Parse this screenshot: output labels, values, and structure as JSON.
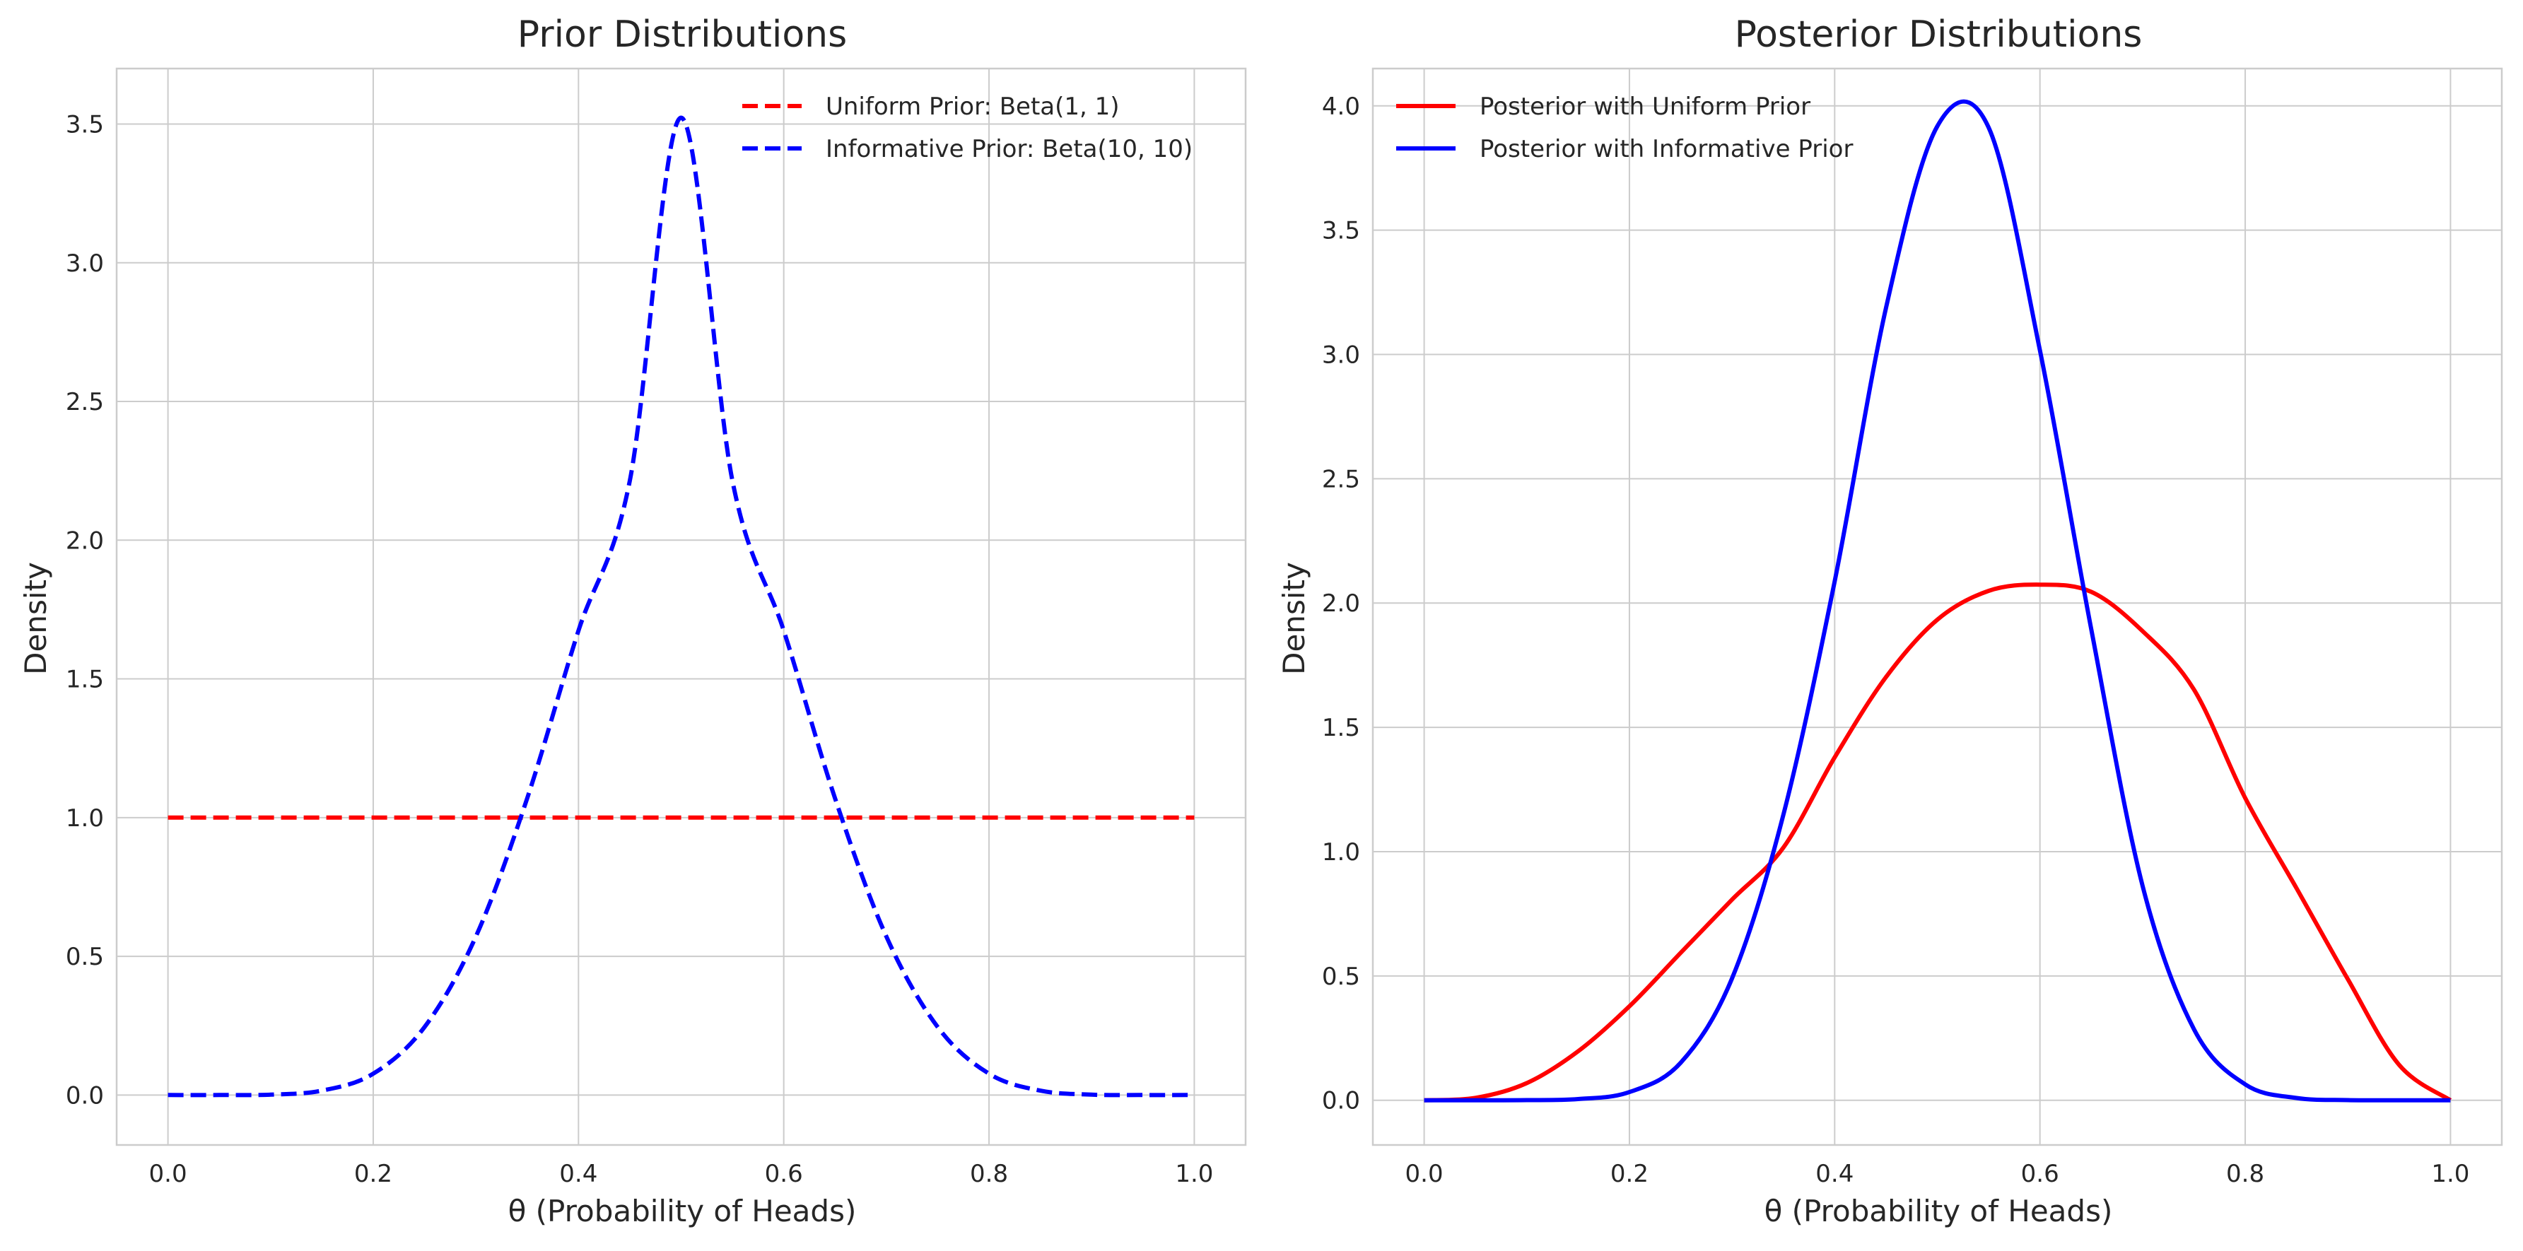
{
  "chart_data": [
    {
      "type": "line",
      "title": "Prior Distributions",
      "xlabel": "θ (Probability of Heads)",
      "ylabel": "Density",
      "xlim": [
        -0.05,
        1.05
      ],
      "ylim": [
        -0.18,
        3.7
      ],
      "xticks": [
        "0.0",
        "0.2",
        "0.4",
        "0.6",
        "0.8",
        "1.0"
      ],
      "yticks": [
        "0.0",
        "0.5",
        "1.0",
        "1.5",
        "2.0",
        "2.5",
        "3.0",
        "3.5"
      ],
      "grid": true,
      "legend_position": "top-right",
      "series": [
        {
          "name": "Uniform Prior: Beta(1, 1)",
          "color": "#ff0000",
          "style": "dashed",
          "x": [
            0.0,
            0.05,
            0.1,
            0.15,
            0.2,
            0.25,
            0.3,
            0.35,
            0.4,
            0.45,
            0.5,
            0.55,
            0.6,
            0.65,
            0.7,
            0.75,
            0.8,
            0.85,
            0.9,
            0.95,
            1.0
          ],
          "y": [
            1.0,
            1.0,
            1.0,
            1.0,
            1.0,
            1.0,
            1.0,
            1.0,
            1.0,
            1.0,
            1.0,
            1.0,
            1.0,
            1.0,
            1.0,
            1.0,
            1.0,
            1.0,
            1.0,
            1.0,
            1.0
          ]
        },
        {
          "name": "Informative Prior: Beta(10, 10)",
          "color": "#0000ff",
          "style": "dashed",
          "x": [
            0.0,
            0.05,
            0.1,
            0.15,
            0.2,
            0.25,
            0.3,
            0.35,
            0.4,
            0.45,
            0.5,
            0.55,
            0.6,
            0.65,
            0.7,
            0.75,
            0.8,
            0.85,
            0.9,
            0.95,
            1.0
          ],
          "y": [
            0.0,
            0.0,
            0.0015,
            0.016,
            0.077,
            0.245,
            0.571,
            1.069,
            1.674,
            2.214,
            3.523,
            2.214,
            1.674,
            1.069,
            0.571,
            0.245,
            0.077,
            0.016,
            0.0015,
            0.0,
            0.0
          ]
        }
      ]
    },
    {
      "type": "line",
      "title": "Posterior Distributions",
      "xlabel": "θ (Probability of Heads)",
      "ylabel": "Density",
      "xlim": [
        -0.05,
        1.05
      ],
      "ylim": [
        -0.18,
        4.15
      ],
      "xticks": [
        "0.0",
        "0.2",
        "0.4",
        "0.6",
        "0.8",
        "1.0"
      ],
      "yticks": [
        "0.0",
        "0.5",
        "1.0",
        "1.5",
        "2.0",
        "2.5",
        "3.0",
        "3.5",
        "4.0"
      ],
      "grid": true,
      "legend_position": "top-left",
      "series": [
        {
          "name": "Posterior with Uniform Prior",
          "color": "#ff0000",
          "style": "solid",
          "x": [
            0.0,
            0.05,
            0.1,
            0.15,
            0.2,
            0.25,
            0.3,
            0.35,
            0.4,
            0.45,
            0.5,
            0.55,
            0.6,
            0.65,
            0.7,
            0.75,
            0.8,
            0.85,
            0.9,
            0.95,
            1.0
          ],
          "y": [
            0.0,
            0.0096,
            0.069,
            0.197,
            0.378,
            0.593,
            0.807,
            1.016,
            1.379,
            1.702,
            1.933,
            2.049,
            2.074,
            2.045,
            1.887,
            1.652,
            1.216,
            0.853,
            0.487,
            0.142,
            0.0
          ]
        },
        {
          "name": "Posterior with Informative Prior",
          "color": "#0000ff",
          "style": "solid",
          "x": [
            0.0,
            0.05,
            0.1,
            0.15,
            0.2,
            0.25,
            0.3,
            0.35,
            0.4,
            0.45,
            0.5,
            0.55,
            0.6,
            0.65,
            0.7,
            0.75,
            0.8,
            0.85,
            0.9,
            0.95,
            1.0
          ],
          "y": [
            0.0,
            0.0,
            0.0004,
            0.0047,
            0.0329,
            0.151,
            0.49,
            1.148,
            2.087,
            3.187,
            3.918,
            3.913,
            3.016,
            1.894,
            0.862,
            0.286,
            0.064,
            0.0092,
            0.0006,
            0.0,
            0.0
          ]
        }
      ]
    }
  ]
}
